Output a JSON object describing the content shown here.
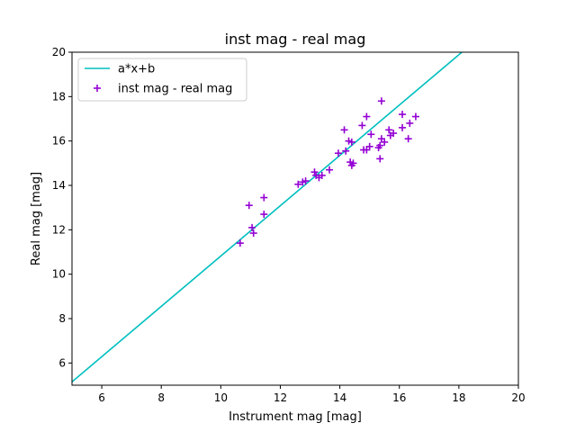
{
  "chart_data": {
    "type": "scatter",
    "title": "inst mag - real mag",
    "xlabel": "Instrument mag [mag]",
    "ylabel": "Real mag [mag]",
    "xlim": [
      5,
      20
    ],
    "ylim": [
      5,
      20
    ],
    "xticks": [
      6,
      8,
      10,
      12,
      14,
      16,
      18,
      20
    ],
    "yticks": [
      6,
      8,
      10,
      12,
      14,
      16,
      18,
      20
    ],
    "grid": false,
    "legend_position": "upper-left",
    "series": [
      {
        "name": "a*x+b",
        "kind": "line",
        "color": "#00bfbf",
        "x": [
          5.0,
          18.1
        ],
        "y": [
          5.15,
          20.0
        ]
      },
      {
        "name": "inst mag - real mag",
        "kind": "scatter",
        "marker": "plus",
        "color": "#9400d3",
        "x": [
          10.65,
          10.95,
          11.05,
          11.1,
          11.45,
          11.45,
          12.6,
          12.75,
          12.85,
          13.15,
          13.2,
          13.3,
          13.4,
          13.65,
          13.95,
          14.15,
          14.2,
          14.3,
          14.35,
          14.4,
          14.4,
          14.45,
          14.75,
          14.8,
          14.9,
          14.9,
          15.0,
          15.05,
          15.3,
          15.35,
          15.35,
          15.4,
          15.4,
          15.5,
          15.65,
          15.7,
          15.8,
          16.1,
          16.1,
          16.3,
          16.35,
          16.55
        ],
        "y": [
          11.4,
          13.1,
          12.1,
          11.85,
          13.45,
          12.7,
          14.05,
          14.15,
          14.2,
          14.6,
          14.45,
          14.35,
          14.45,
          14.7,
          15.45,
          16.5,
          15.55,
          16.0,
          15.05,
          15.95,
          14.9,
          15.0,
          16.7,
          15.6,
          17.1,
          15.6,
          15.75,
          16.3,
          15.7,
          15.8,
          15.2,
          16.1,
          17.8,
          15.95,
          16.5,
          16.25,
          16.35,
          16.6,
          17.2,
          16.1,
          16.8,
          17.1
        ]
      }
    ]
  }
}
